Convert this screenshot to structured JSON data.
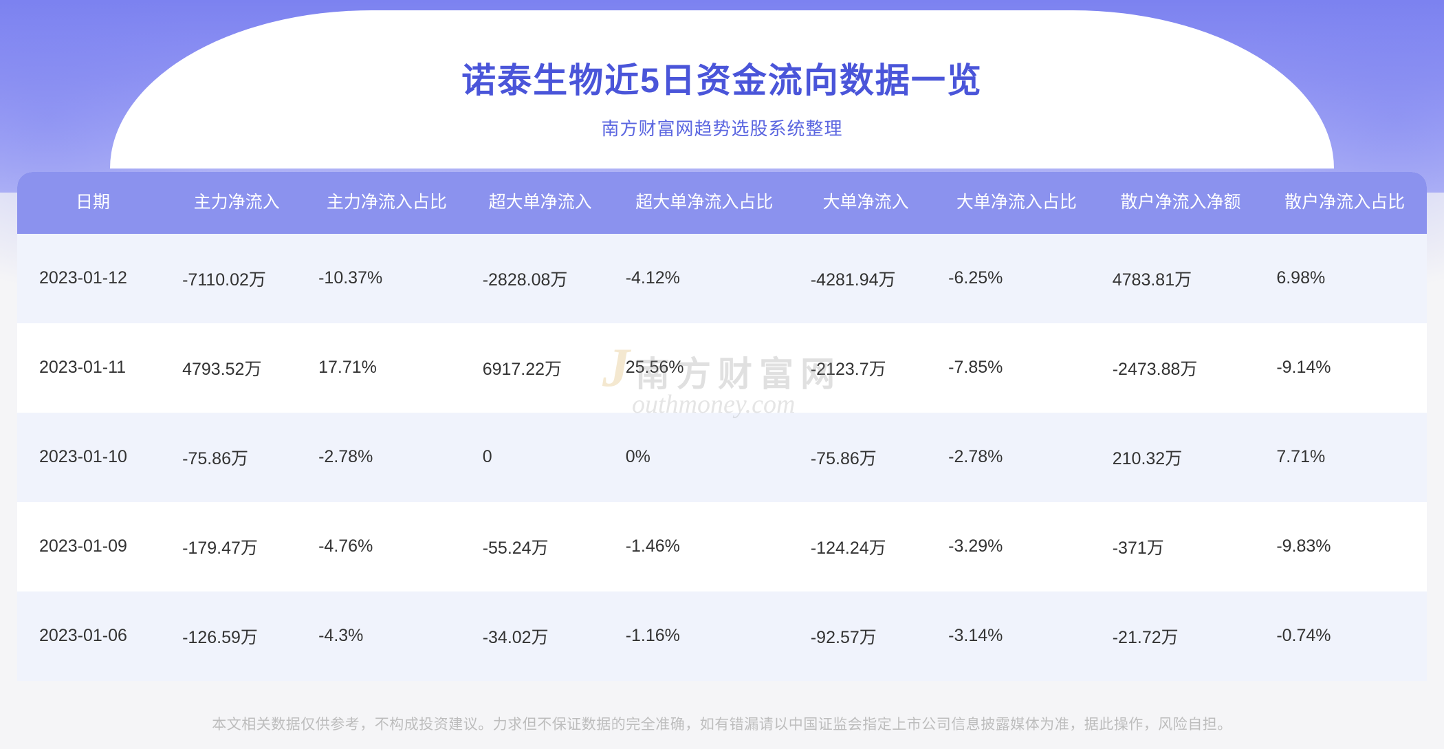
{
  "header": {
    "title": "诺泰生物近5日资金流向数据一览",
    "subtitle": "南方财富网趋势选股系统整理"
  },
  "table": {
    "columns": [
      "日期",
      "主力净流入",
      "主力净流入占比",
      "超大单净流入",
      "超大单净流入占比",
      "大单净流入",
      "大单净流入占比",
      "散户净流入净额",
      "散户净流入占比"
    ],
    "rows": [
      [
        "2023-01-12",
        "-7110.02万",
        "-10.37%",
        "-2828.08万",
        "-4.12%",
        "-4281.94万",
        "-6.25%",
        "4783.81万",
        "6.98%"
      ],
      [
        "2023-01-11",
        "4793.52万",
        "17.71%",
        "6917.22万",
        "25.56%",
        "-2123.7万",
        "-7.85%",
        "-2473.88万",
        "-9.14%"
      ],
      [
        "2023-01-10",
        "-75.86万",
        "-2.78%",
        "0",
        "0%",
        "-75.86万",
        "-2.78%",
        "210.32万",
        "7.71%"
      ],
      [
        "2023-01-09",
        "-179.47万",
        "-4.76%",
        "-55.24万",
        "-1.46%",
        "-124.24万",
        "-3.29%",
        "-371万",
        "-9.83%"
      ],
      [
        "2023-01-06",
        "-126.59万",
        "-4.3%",
        "-34.02万",
        "-1.16%",
        "-92.57万",
        "-3.14%",
        "-21.72万",
        "-0.74%"
      ]
    ],
    "header_bg_color": "#8b92ee",
    "header_text_color": "#ffffff",
    "row_odd_bg": "#f0f3fc",
    "row_even_bg": "#ffffff",
    "cell_text_color": "#333333",
    "cell_fontsize": 25,
    "header_fontsize": 25
  },
  "watermark": {
    "cn": "南方财富网",
    "en": "outhmoney.com",
    "j": "J"
  },
  "disclaimer": "本文相关数据仅供参考，不构成投资建议。力求但不保证数据的完全准确，如有错漏请以中国证监会指定上市公司信息披露媒体为准，据此操作，风险自担。",
  "colors": {
    "title_color": "#4a55d9",
    "subtitle_color": "#5b66e0",
    "header_gradient_top": "#7c82f0",
    "header_gradient_bottom": "#b5b8f6",
    "disclaimer_color": "#bdbdbd"
  }
}
